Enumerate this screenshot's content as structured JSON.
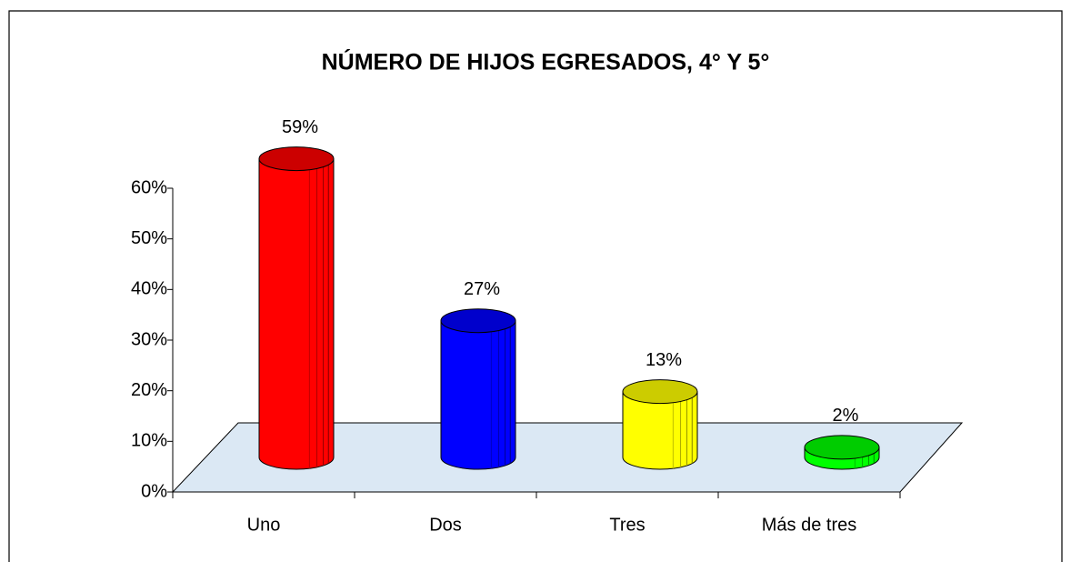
{
  "chart_data": {
    "type": "bar3d",
    "title": "NÚMERO DE HIJOS EGRESADOS, 4° Y 5°",
    "categories": [
      "Uno",
      "Dos",
      "Tres",
      "Más de tres"
    ],
    "values": [
      59,
      27,
      13,
      2
    ],
    "value_labels": [
      "59%",
      "27%",
      "13%",
      "2%"
    ],
    "colors": [
      "#ff0000",
      "#0000ff",
      "#ffff00",
      "#00ff00"
    ],
    "ylim": [
      0,
      60
    ],
    "yticks": [
      {
        "value": 0,
        "label": "0%"
      },
      {
        "value": 10,
        "label": "10%"
      },
      {
        "value": 20,
        "label": "20%"
      },
      {
        "value": 30,
        "label": "30%"
      },
      {
        "value": 40,
        "label": "40%"
      },
      {
        "value": 50,
        "label": "50%"
      },
      {
        "value": 60,
        "label": "60%"
      }
    ]
  }
}
